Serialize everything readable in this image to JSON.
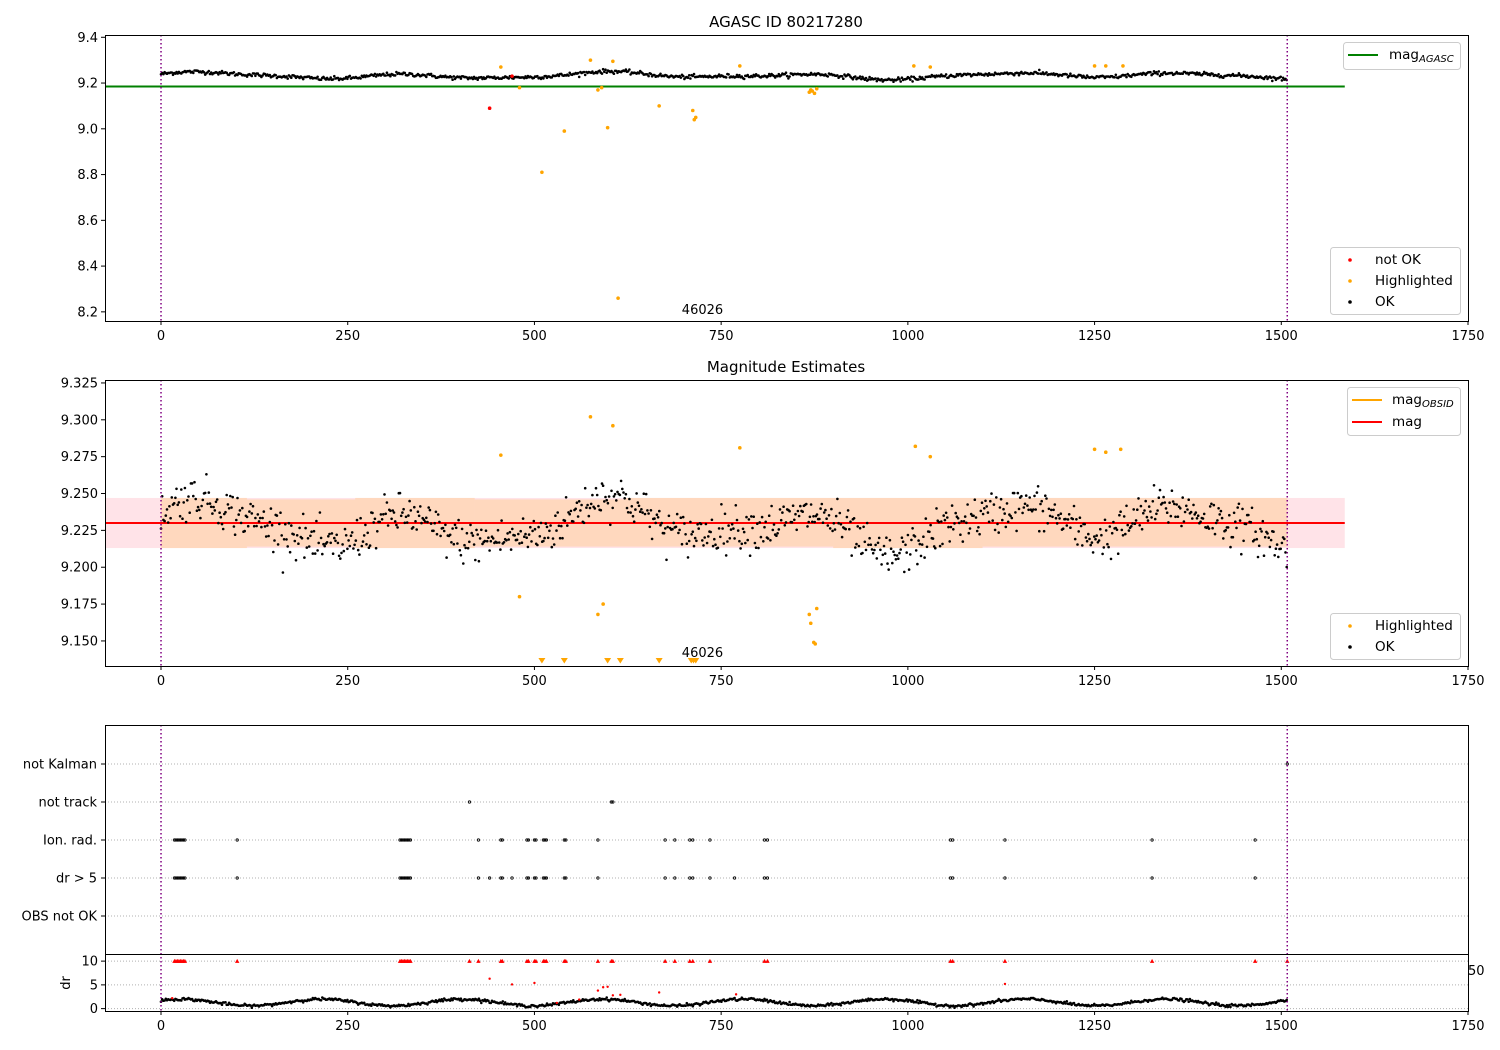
{
  "chart_data": [
    {
      "type": "scatter",
      "title": "AGASC ID 80217280",
      "xlim": [
        -75,
        1750
      ],
      "ylim": [
        8.16,
        9.41
      ],
      "xticks": [
        0,
        250,
        500,
        750,
        1000,
        1250,
        1500,
        1750
      ],
      "yticks": [
        8.2,
        8.4,
        8.6,
        8.8,
        9.0,
        9.2,
        9.4
      ],
      "vlines": [
        0,
        1508
      ],
      "annotation": {
        "text": "46026",
        "x": 725,
        "y": 8.2
      },
      "reference_line": {
        "name": "mag_AGASC",
        "y": 9.185,
        "x_range": [
          -75,
          1585
        ],
        "color": "#008000"
      },
      "ok_baseline": {
        "center": 9.232,
        "amplitude": 0.018,
        "noise": 0.008
      },
      "series": [
        {
          "name": "not OK",
          "color": "#ff0000",
          "points": [
            [
              440,
              9.09
            ],
            [
              470,
              9.23
            ]
          ]
        },
        {
          "name": "Highlighted",
          "color": "#ffa500",
          "points": [
            [
              455,
              9.27
            ],
            [
              480,
              9.18
            ],
            [
              510,
              8.81
            ],
            [
              540,
              8.99
            ],
            [
              575,
              9.3
            ],
            [
              585,
              9.17
            ],
            [
              590,
              9.18
            ],
            [
              598,
              9.005
            ],
            [
              605,
              9.295
            ],
            [
              612,
              8.26
            ],
            [
              667,
              9.1
            ],
            [
              712,
              9.08
            ],
            [
              714,
              9.04
            ],
            [
              716,
              9.05
            ],
            [
              775,
              9.275
            ],
            [
              868,
              9.16
            ],
            [
              870,
              9.17
            ],
            [
              872,
              9.165
            ],
            [
              875,
              9.155
            ],
            [
              878,
              9.175
            ],
            [
              1008,
              9.275
            ],
            [
              1030,
              9.27
            ],
            [
              1250,
              9.275
            ],
            [
              1265,
              9.275
            ],
            [
              1288,
              9.275
            ]
          ]
        }
      ],
      "legend": [
        {
          "label": "mag",
          "sub": "AGASC",
          "color": "#008000",
          "kind": "line",
          "position": "upper-right"
        },
        {
          "label": "not OK",
          "color": "#ff0000",
          "kind": "dot",
          "position": "lower-right"
        },
        {
          "label": "Highlighted",
          "color": "#ffa500",
          "kind": "dot",
          "position": "lower-right"
        },
        {
          "label": "OK",
          "color": "#000000",
          "kind": "dot",
          "position": "lower-right"
        }
      ]
    },
    {
      "type": "scatter",
      "title": "Magnitude Estimates",
      "xlim": [
        -75,
        1750
      ],
      "ylim": [
        9.133,
        9.327
      ],
      "xticks": [
        0,
        250,
        500,
        750,
        1000,
        1250,
        1500,
        1750
      ],
      "yticks": [
        9.15,
        9.175,
        9.2,
        9.225,
        9.25,
        9.275,
        9.3,
        9.325
      ],
      "vlines": [
        0,
        1508
      ],
      "annotation": {
        "text": "46026",
        "x": 725,
        "y": 9.135
      },
      "mag_line": {
        "name": "mag",
        "y": 9.23,
        "x_range": [
          -75,
          1585
        ],
        "color": "#ff0000"
      },
      "mag_band": {
        "y_range": [
          9.213,
          9.247
        ],
        "x_range": [
          -75,
          1585
        ],
        "color": "#ffc0cb"
      },
      "obsid_bands": [
        [
          0,
          115,
          9.213,
          9.247
        ],
        [
          115,
          260,
          9.214,
          9.246
        ],
        [
          260,
          420,
          9.213,
          9.247
        ],
        [
          420,
          620,
          9.214,
          9.246
        ],
        [
          620,
          900,
          9.214,
          9.247
        ],
        [
          900,
          1100,
          9.213,
          9.247
        ],
        [
          1100,
          1508,
          9.214,
          9.247
        ]
      ],
      "ok_baseline": {
        "center": 9.228,
        "amplitude": 0.02,
        "noise": 0.012
      },
      "series": [
        {
          "name": "Highlighted",
          "color": "#ffa500",
          "points": [
            [
              455,
              9.276
            ],
            [
              480,
              9.18
            ],
            [
              575,
              9.302
            ],
            [
              585,
              9.168
            ],
            [
              592,
              9.175
            ],
            [
              605,
              9.296
            ],
            [
              775,
              9.281
            ],
            [
              868,
              9.168
            ],
            [
              870,
              9.162
            ],
            [
              874,
              9.149
            ],
            [
              876,
              9.148
            ],
            [
              878,
              9.172
            ],
            [
              1010,
              9.282
            ],
            [
              1030,
              9.275
            ],
            [
              1250,
              9.28
            ],
            [
              1265,
              9.278
            ],
            [
              1285,
              9.28
            ]
          ]
        },
        {
          "name": "Highlighted-below",
          "color": "#ffa500",
          "marker": "triangle-down",
          "points": [
            [
              510,
              9.135
            ],
            [
              540,
              9.135
            ],
            [
              598,
              9.135
            ],
            [
              615,
              9.135
            ],
            [
              667,
              9.135
            ],
            [
              710,
              9.135
            ],
            [
              713,
              9.135
            ],
            [
              716,
              9.135
            ]
          ]
        }
      ],
      "legend": [
        {
          "label": "mag",
          "sub": "OBSID",
          "color": "#ffa500",
          "kind": "line",
          "position": "upper-right"
        },
        {
          "label": "mag",
          "color": "#ff0000",
          "kind": "line",
          "position": "upper-right"
        },
        {
          "label": "Highlighted",
          "color": "#ffa500",
          "kind": "dot",
          "position": "lower-right"
        },
        {
          "label": "OK",
          "color": "#000000",
          "kind": "dot",
          "position": "lower-right"
        }
      ]
    },
    {
      "type": "scatter",
      "title": "",
      "xlim": [
        -75,
        1750
      ],
      "xticks": [
        0,
        250,
        500,
        750,
        1000,
        1250,
        1500,
        1750
      ],
      "vlines": [
        0,
        1508
      ],
      "flag_rows": [
        "not Kalman",
        "not track",
        "Ion. rad.",
        "dr > 5",
        "OBS not OK"
      ],
      "flag_points": {
        "not Kalman": [
          1508
        ],
        "not track": [
          413,
          603,
          605
        ],
        "Ion. rad.": [
          18,
          20,
          22,
          24,
          26,
          28,
          30,
          32,
          102,
          320,
          322,
          324,
          326,
          328,
          330,
          332,
          334,
          425,
          455,
          457,
          490,
          492,
          500,
          502,
          512,
          514,
          516,
          540,
          542,
          585,
          675,
          688,
          708,
          712,
          735,
          808,
          812,
          1057,
          1060,
          1130,
          1327,
          1465
        ],
        "dr > 5": [
          18,
          20,
          22,
          24,
          26,
          28,
          30,
          32,
          102,
          320,
          322,
          324,
          326,
          328,
          330,
          332,
          334,
          425,
          440,
          455,
          457,
          470,
          490,
          492,
          500,
          502,
          512,
          514,
          516,
          540,
          542,
          585,
          675,
          688,
          708,
          712,
          735,
          768,
          808,
          812,
          1057,
          1060,
          1130,
          1327,
          1465
        ]
      },
      "dr_panel": {
        "ylabel": "dr",
        "ylim": [
          -0.5,
          11.5
        ],
        "yticks": [
          0,
          5,
          10
        ],
        "cap": 10,
        "right_label": "50",
        "capped_x": [
          18,
          20,
          22,
          24,
          26,
          28,
          30,
          32,
          102,
          320,
          322,
          324,
          326,
          328,
          330,
          332,
          334,
          413,
          425,
          455,
          457,
          490,
          492,
          500,
          502,
          512,
          514,
          516,
          540,
          542,
          585,
          603,
          605,
          675,
          688,
          708,
          712,
          735,
          808,
          812,
          1057,
          1060,
          1130,
          1327,
          1465,
          1508
        ],
        "red_points": [
          [
            440,
            6.3
          ],
          [
            470,
            5.1
          ],
          [
            500,
            5.4
          ],
          [
            585,
            3.8
          ],
          [
            592,
            4.5
          ],
          [
            598,
            4.6
          ],
          [
            605,
            2.8
          ],
          [
            615,
            2.9
          ],
          [
            667,
            3.4
          ],
          [
            770,
            3.0
          ],
          [
            1130,
            5.2
          ],
          [
            15,
            2.2
          ],
          [
            530,
            1.2
          ],
          [
            560,
            1.9
          ]
        ],
        "baseline": {
          "center": 1.3,
          "amplitude": 0.7,
          "noise": 0.15
        }
      }
    }
  ]
}
